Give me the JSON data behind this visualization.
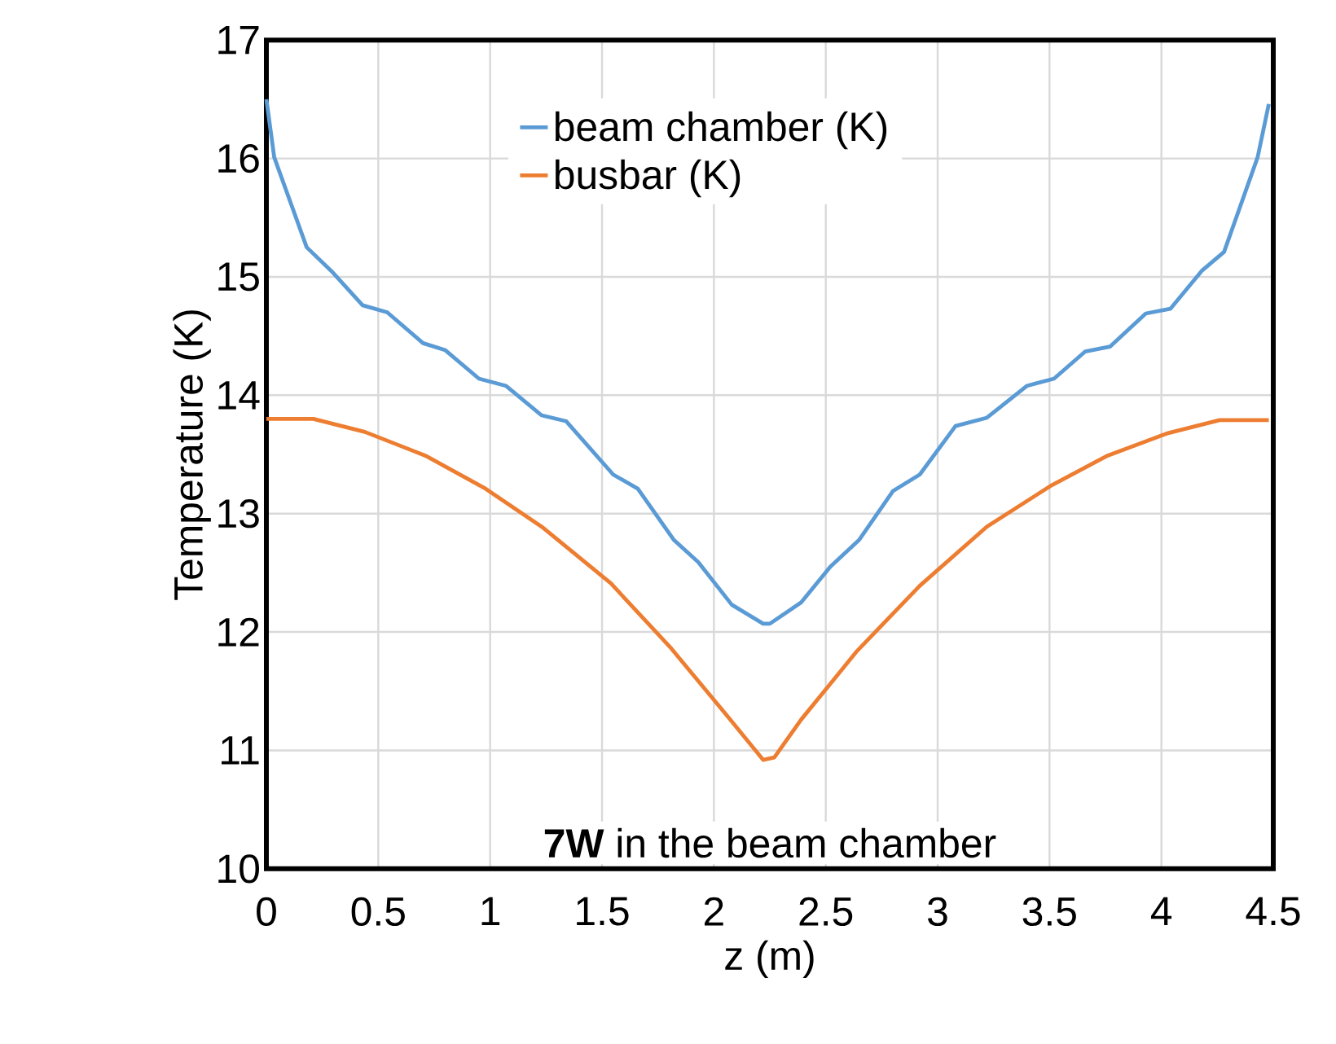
{
  "chart_data": {
    "type": "line",
    "xlabel": "z (m)",
    "ylabel": "Temperature (K)",
    "xlim": [
      0,
      4.5
    ],
    "ylim": [
      10,
      17
    ],
    "xticks": [
      0,
      0.5,
      1,
      1.5,
      2,
      2.5,
      3,
      3.5,
      4,
      4.5
    ],
    "yticks": [
      10,
      11,
      12,
      13,
      14,
      15,
      16,
      17
    ],
    "grid": true,
    "legend": "top",
    "annotations": [
      "**7W** in the beam chamber"
    ],
    "series": [
      {
        "name": "beam chamber (K)",
        "color": "#5b9bd5",
        "x": [
          0,
          0.035,
          0.18,
          0.29,
          0.43,
          0.54,
          0.7,
          0.8,
          0.95,
          1.07,
          1.23,
          1.34,
          1.55,
          1.66,
          1.82,
          1.93,
          2.08,
          2.22,
          2.25,
          2.39,
          2.52,
          2.65,
          2.8,
          2.92,
          3.08,
          3.22,
          3.4,
          3.52,
          3.66,
          3.77,
          3.93,
          4.04,
          4.18,
          4.28,
          4.43,
          4.48
        ],
        "values": [
          16.5,
          16.01,
          15.25,
          15.05,
          14.76,
          14.7,
          14.44,
          14.38,
          14.14,
          14.08,
          13.83,
          13.78,
          13.33,
          13.21,
          12.78,
          12.59,
          12.23,
          12.07,
          12.07,
          12.25,
          12.55,
          12.78,
          13.19,
          13.33,
          13.74,
          13.81,
          14.08,
          14.14,
          14.37,
          14.41,
          14.69,
          14.73,
          15.05,
          15.21,
          16.01,
          16.46
        ]
      },
      {
        "name": "busbar (K)",
        "color": "#ed7d31",
        "x": [
          0,
          0.21,
          0.44,
          0.71,
          0.98,
          1.23,
          1.54,
          1.81,
          2.06,
          2.22,
          2.27,
          2.39,
          2.64,
          2.92,
          3.22,
          3.51,
          3.76,
          4.03,
          4.26,
          4.48
        ],
        "values": [
          13.8,
          13.8,
          13.69,
          13.49,
          13.21,
          12.89,
          12.41,
          11.86,
          11.29,
          10.92,
          10.94,
          11.26,
          11.84,
          12.39,
          12.89,
          13.24,
          13.49,
          13.68,
          13.79,
          13.79
        ]
      }
    ]
  }
}
